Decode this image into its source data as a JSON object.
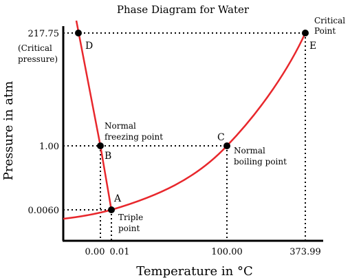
{
  "chart_data": {
    "type": "line",
    "title": "Phase Diagram for Water",
    "xlabel": "Temperature in °C",
    "ylabel": "Pressure in atm",
    "x_ticks": [
      "0.00",
      "0.01",
      "100.00",
      "373.99"
    ],
    "y_ticks": [
      "217.75",
      "1.00",
      "0.0060"
    ],
    "y_tick_note": [
      "(Critical",
      "pressure)"
    ],
    "series": [
      {
        "points": [
          [
            "0.00",
            "217.75"
          ],
          [
            "0.00",
            "1.00"
          ],
          [
            "0.01",
            "0.0060"
          ]
        ]
      },
      {
        "points": [
          [
            "0.01",
            "0.0060"
          ],
          [
            "100.00",
            "1.00"
          ],
          [
            "373.99",
            "217.75"
          ]
        ]
      }
    ],
    "points": [
      {
        "letter": "D",
        "x": "0.00",
        "y": "217.75",
        "label": []
      },
      {
        "letter": "B",
        "x": "0.00",
        "y": "1.00",
        "label": [
          "Normal",
          "freezing point"
        ]
      },
      {
        "letter": "A",
        "x": "0.01",
        "y": "0.0060",
        "label": [
          "Triple",
          "point"
        ]
      },
      {
        "letter": "C",
        "x": "100.00",
        "y": "1.00",
        "label": [
          "Normal",
          "boiling point"
        ]
      },
      {
        "letter": "E",
        "x": "373.99",
        "y": "217.75",
        "label": [
          "Critical",
          "Point"
        ]
      }
    ],
    "axis_scale": "schematic (not to scale)",
    "grid": false,
    "legend": "none",
    "colors": {
      "curve": "#e8272c",
      "guide": "#000000",
      "axis": "#000000",
      "point": "#000000"
    }
  }
}
